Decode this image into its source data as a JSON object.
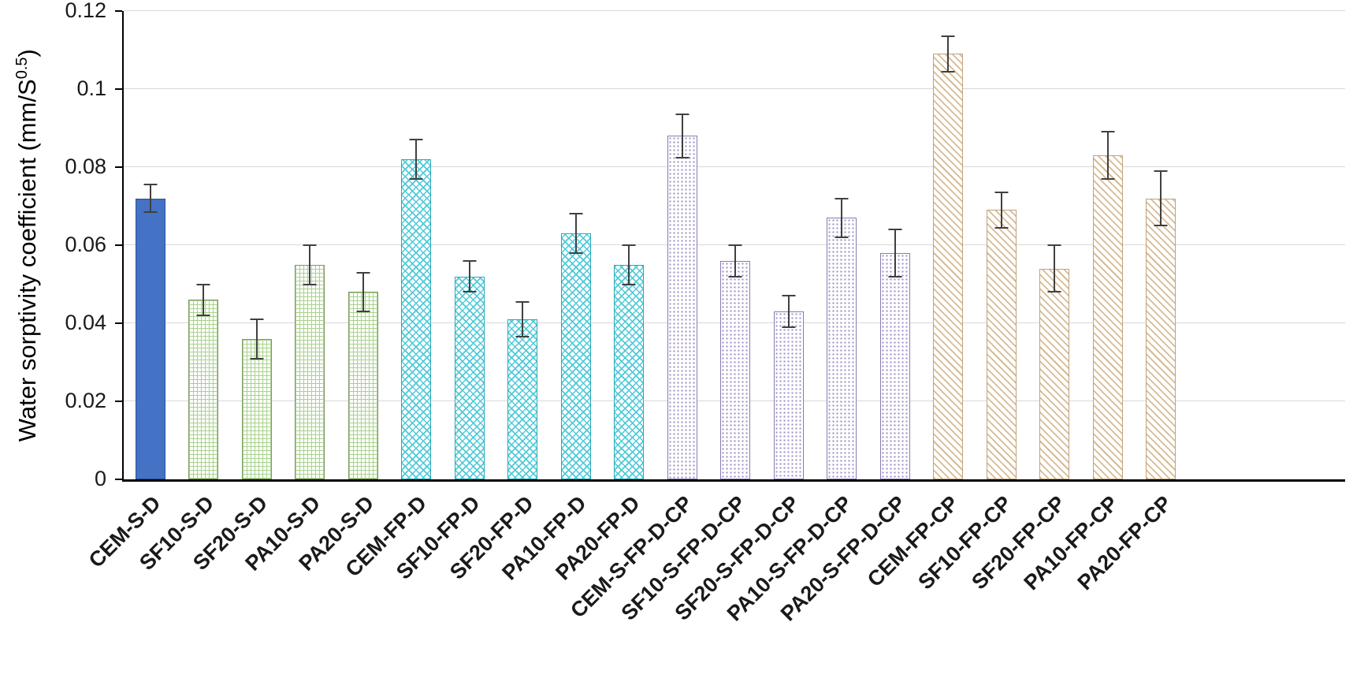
{
  "colors": {
    "blue-fill": "#4472c4",
    "blue-border": "#2e4f8e",
    "green-line": "#a9d18e",
    "green-border": "#7d9b62",
    "cyan-line": "#4ec9d8",
    "cyan-border": "#2aa8b8",
    "purple-dot": "#a294c6",
    "purple-border": "#8a7ab0",
    "tan-line": "#d6bb94",
    "tan-border": "#bfa27c",
    "error-bar": "#404040",
    "gridline": "#d9d9d9",
    "axis": "#000000",
    "text": "#1a1a1a"
  },
  "chart_data": {
    "type": "bar",
    "title": "",
    "ylabel_prefix": "Water sorptivity coefficient  (mm/S",
    "ylabel_superscript": "0.5",
    "ylabel_suffix": ")",
    "xlabel": "",
    "ylim": [
      0,
      0.12
    ],
    "ytick_values": [
      0,
      0.02,
      0.04,
      0.06,
      0.08,
      0.1,
      0.12
    ],
    "ytick_labels": [
      "0",
      "0.02",
      "0.04",
      "0.06",
      "0.08",
      "0.1",
      "0.12"
    ],
    "grid": true,
    "legend": "none",
    "error_bars": true,
    "categories": [
      "CEM-S-D",
      "SF10-S-D",
      "SF20-S-D",
      "PA10-S-D",
      "PA20-S-D",
      "CEM-FP-D",
      "SF10-FP-D",
      "SF20-FP-D",
      "PA10-FP-D",
      "PA20-FP-D",
      "CEM-S-FP-D-CP",
      "SF10-S-FP-D-CP",
      "SF20-S-FP-D-CP",
      "PA10-S-FP-D-CP",
      "PA20-S-FP-D-CP",
      "CEM-FP-CP",
      "SF10-FP-CP",
      "SF20-FP-CP",
      "PA10-FP-CP",
      "PA20-FP-CP"
    ],
    "values": [
      0.072,
      0.046,
      0.036,
      0.055,
      0.048,
      0.082,
      0.052,
      0.041,
      0.063,
      0.055,
      0.088,
      0.056,
      0.043,
      0.067,
      0.058,
      0.109,
      0.069,
      0.054,
      0.083,
      0.072
    ],
    "errors": [
      0.0035,
      0.004,
      0.005,
      0.005,
      0.005,
      0.005,
      0.004,
      0.0045,
      0.005,
      0.005,
      0.0055,
      0.004,
      0.004,
      0.005,
      0.006,
      0.0045,
      0.0045,
      0.006,
      0.006,
      0.007
    ],
    "bar_styles": [
      "solid-blue",
      "green-grid",
      "green-grid",
      "green-grid",
      "green-grid",
      "cyan-cross",
      "cyan-cross",
      "cyan-cross",
      "cyan-cross",
      "cyan-cross",
      "purple-dots",
      "purple-dots",
      "purple-dots",
      "purple-dots",
      "purple-dots",
      "tan-diag",
      "tan-diag",
      "tan-diag",
      "tan-diag",
      "tan-diag"
    ]
  }
}
